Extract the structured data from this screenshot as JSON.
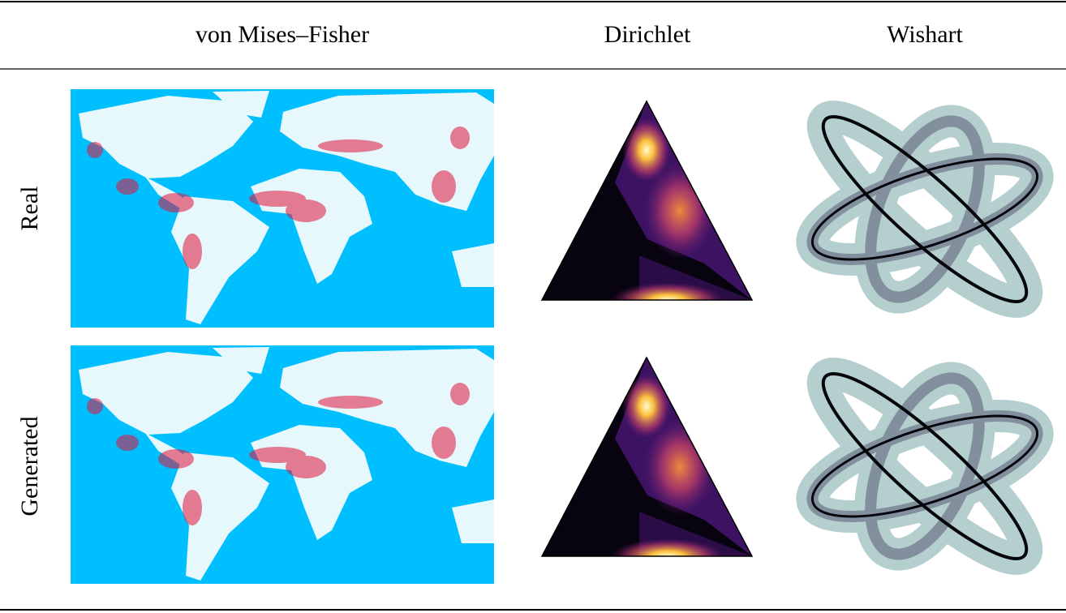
{
  "table": {
    "columns": [
      "von Mises–Fisher",
      "Dirichlet",
      "Wishart"
    ],
    "rows": [
      "Real",
      "Generated"
    ]
  }
}
